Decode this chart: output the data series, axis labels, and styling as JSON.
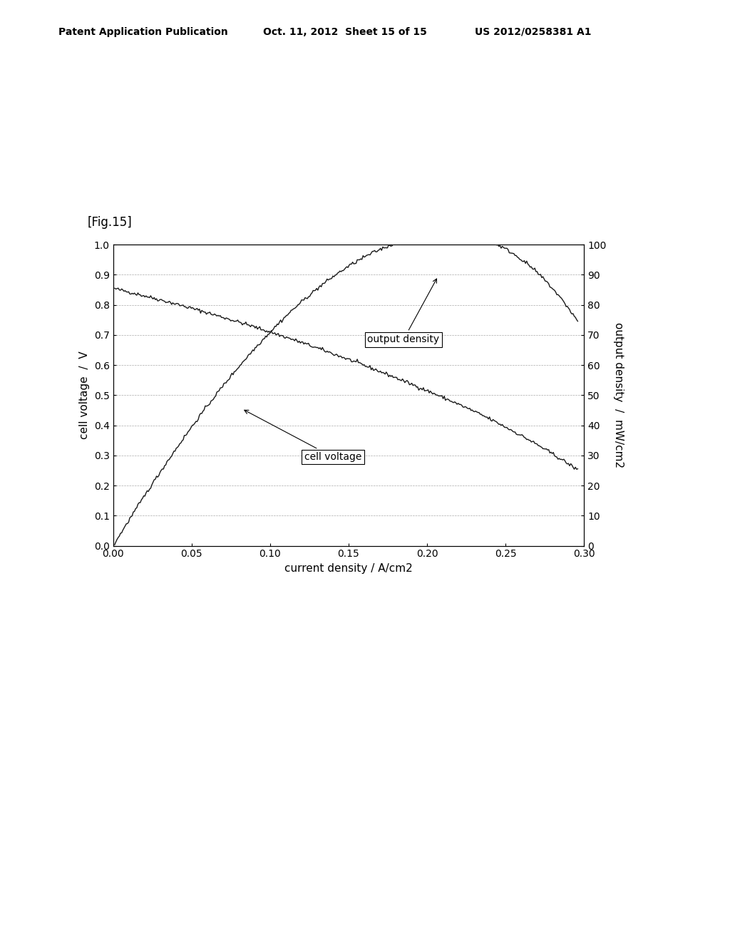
{
  "fig_label": "[Fig.15]",
  "header_left": "Patent Application Publication",
  "header_mid": "Oct. 11, 2012  Sheet 15 of 15",
  "header_right": "US 2012/0258381 A1",
  "xlabel": "current density / A/cm2",
  "ylabel_left": "cell voltage  /  V",
  "ylabel_right": "output density  /  mW/cm2",
  "xlim": [
    0,
    0.3
  ],
  "ylim_left": [
    0,
    1
  ],
  "ylim_right": [
    0,
    100
  ],
  "xticks": [
    0,
    0.05,
    0.1,
    0.15,
    0.2,
    0.25,
    0.3
  ],
  "yticks_left": [
    0,
    0.1,
    0.2,
    0.3,
    0.4,
    0.5,
    0.6,
    0.7,
    0.8,
    0.9,
    1
  ],
  "yticks_right": [
    0,
    10,
    20,
    30,
    40,
    50,
    60,
    70,
    80,
    90,
    100
  ],
  "line_color": "#1a1a1a",
  "background_color": "#ffffff",
  "annotation_cell_voltage": "cell voltage",
  "annotation_output_density": "output density"
}
